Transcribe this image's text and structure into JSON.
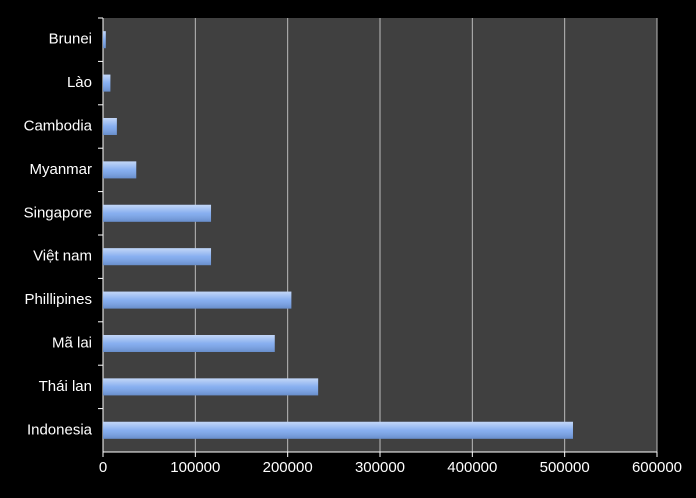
{
  "chart_data": {
    "type": "barh",
    "categories": [
      "Brunei",
      "Lào",
      "Cambodia",
      "Myanmar",
      "Singapore",
      "Việt nam",
      "Phillipines",
      "Mã lai",
      "Thái lan",
      "Indonesia"
    ],
    "values": [
      3000,
      8000,
      15000,
      36000,
      117000,
      117000,
      204000,
      186000,
      233000,
      509000
    ],
    "color": "#7aa6ee",
    "xlim": [
      0,
      600000
    ],
    "xticks": [
      0,
      100000,
      200000,
      300000,
      400000,
      500000,
      600000
    ],
    "grid": true
  }
}
